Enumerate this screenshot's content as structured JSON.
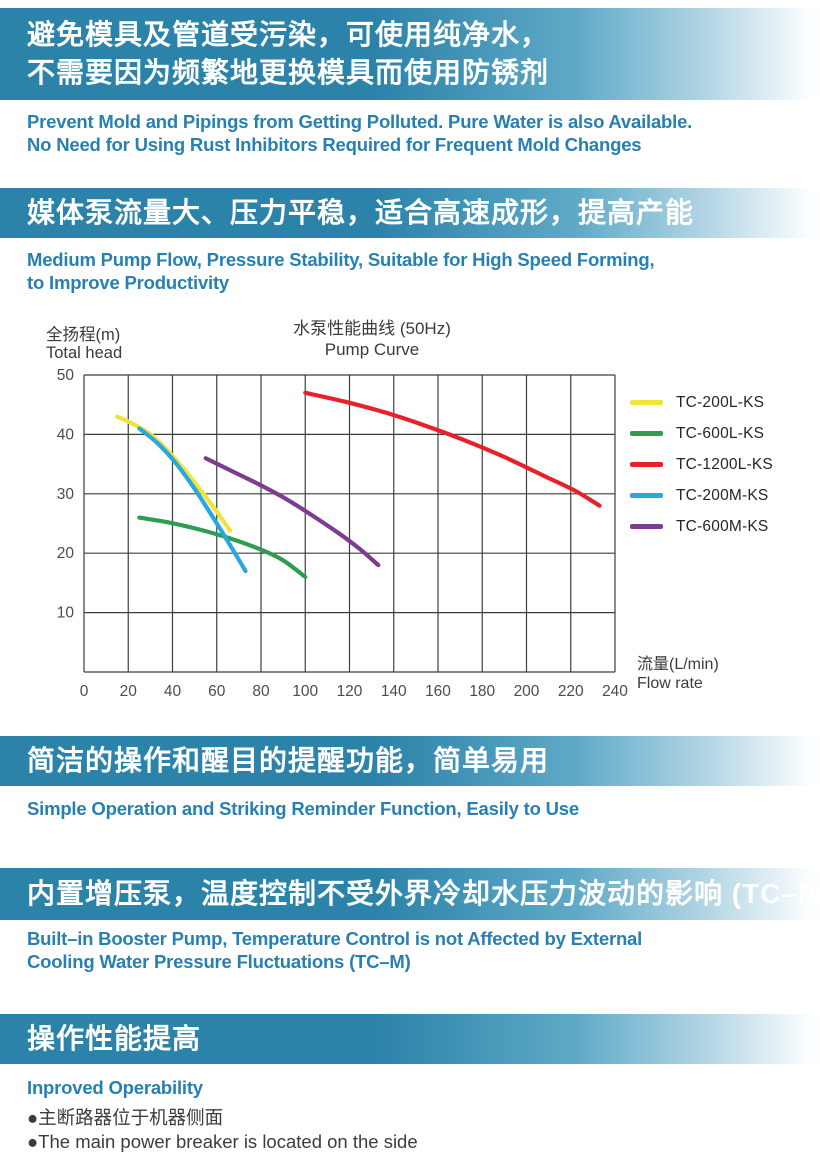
{
  "sections": {
    "pollution": {
      "banner_lines": [
        "避免模具及管道受污染，可使用纯净水，",
        "不需要因为频繁地更换模具而使用防锈剂"
      ],
      "subtitle_lines": [
        "Prevent Mold and Pipings from Getting Polluted. Pure Water is also Available.",
        "No Need for Using Rust Inhibitors Required for Frequent Mold Changes"
      ]
    },
    "pump_flow": {
      "banner_lines": [
        "媒体泵流量大、压力平稳，适合高速成形，提高产能"
      ],
      "subtitle_lines": [
        "Medium Pump Flow, Pressure Stability, Suitable for High Speed Forming,",
        "to Improve Productivity"
      ]
    },
    "simple_operation": {
      "banner_lines": [
        "简洁的操作和醒目的提醒功能，简单易用"
      ],
      "subtitle_lines": [
        "Simple Operation and Striking Reminder Function, Easily to Use"
      ]
    },
    "booster": {
      "banner_lines": [
        "内置增压泵，温度控制不受外界冷却水压力波动的影响 (TC–M)"
      ],
      "subtitle_lines": [
        "Built–in Booster Pump, Temperature Control is not Affected by External",
        "Cooling Water Pressure Fluctuations (TC–M)"
      ]
    },
    "operability": {
      "banner_lines": [
        "操作性能提高"
      ],
      "subtitle_lines": [
        "Inproved Operability"
      ]
    }
  },
  "bullets": {
    "items": [
      "●主断路器位于机器侧面",
      "●The main power breaker is located on the side"
    ]
  },
  "colors": {
    "banner_blue": "#2c83a9",
    "subtitle_blue": "#2780b1",
    "body_text": "#3c3c3c"
  },
  "chart_data": {
    "type": "line",
    "title_zh": "水泵性能曲线 (50Hz)",
    "title_en": "Pump Curve",
    "y_axis_label_zh": "全扬程(m)",
    "y_axis_label_en": "Total head",
    "x_axis_label_zh": "流量(L/min)",
    "x_axis_label_en": "Flow rate",
    "xlim": [
      0,
      240
    ],
    "ylim": [
      0,
      50
    ],
    "x_grid_step": 20,
    "y_grid_step": 10,
    "x_ticks": [
      0,
      20,
      40,
      60,
      80,
      100,
      120,
      140,
      160,
      180,
      200,
      220,
      240
    ],
    "y_ticks": [
      50,
      40,
      30,
      20,
      10
    ],
    "grid": true,
    "legend_position": "right",
    "series": [
      {
        "name": "TC-200L-KS",
        "color": "#efe33c",
        "points": [
          [
            15,
            43
          ],
          [
            22,
            41.8
          ],
          [
            30,
            40
          ],
          [
            38,
            37.2
          ],
          [
            46,
            33.8
          ],
          [
            54,
            30
          ],
          [
            60,
            27
          ],
          [
            66,
            23.8
          ]
        ]
      },
      {
        "name": "TC-600L-KS",
        "color": "#2f9c51",
        "points": [
          [
            25,
            26
          ],
          [
            38,
            25.2
          ],
          [
            52,
            24
          ],
          [
            66,
            22.5
          ],
          [
            80,
            20.6
          ],
          [
            90,
            18.8
          ],
          [
            100,
            16
          ]
        ]
      },
      {
        "name": "TC-1200L-KS",
        "color": "#e62129",
        "points": [
          [
            100,
            47
          ],
          [
            118,
            45.5
          ],
          [
            136,
            43.7
          ],
          [
            154,
            41.5
          ],
          [
            172,
            39
          ],
          [
            190,
            36.2
          ],
          [
            208,
            33
          ],
          [
            222,
            30.5
          ],
          [
            233,
            28
          ]
        ]
      },
      {
        "name": "TC-200M-KS",
        "color": "#29a7de",
        "points": [
          [
            25,
            41
          ],
          [
            33,
            38.6
          ],
          [
            41,
            35.4
          ],
          [
            49,
            31.4
          ],
          [
            57,
            26.8
          ],
          [
            65,
            22
          ],
          [
            73,
            17
          ]
        ]
      },
      {
        "name": "TC-600M-KS",
        "color": "#7c3c8f",
        "points": [
          [
            55,
            36
          ],
          [
            67,
            33.8
          ],
          [
            79,
            31.6
          ],
          [
            91,
            29.2
          ],
          [
            103,
            26.4
          ],
          [
            115,
            23.4
          ],
          [
            125,
            20.6
          ],
          [
            133,
            18
          ]
        ]
      }
    ]
  }
}
